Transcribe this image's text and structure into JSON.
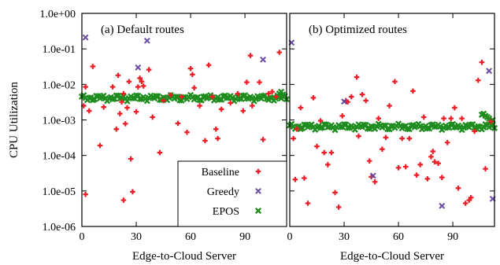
{
  "chart_data": {
    "type": "scatter",
    "xlabel": "Edge-to-Cloud Server",
    "ylabel": "CPU Utilization",
    "yscale": "log",
    "ylim": [
      1e-06,
      1
    ],
    "y_ticks": [
      "1.0e-06",
      "1.0e-05",
      "1.0e-04",
      "1.0e-03",
      "1.0e-02",
      "1.0e-01",
      "1.0e+00"
    ],
    "legend": {
      "position": "bottom-center, inside left panel",
      "entries": [
        "Baseline",
        "Greedy",
        "EPOS"
      ]
    },
    "series_colors": {
      "Baseline": "#ee1c25",
      "Greedy": "#6a4ba3",
      "EPOS": "#1e8c1e"
    },
    "panels": [
      {
        "title": "(a) Default routes",
        "xlim": [
          0,
          113
        ],
        "x_ticks": [
          "0",
          "30",
          "60",
          "90"
        ],
        "baseline": [
          [
            1,
            0.0025
          ],
          [
            2,
            0.0085
          ],
          [
            2,
            8e-06
          ],
          [
            4,
            0.0018
          ],
          [
            6,
            0.032
          ],
          [
            10,
            0.00019
          ],
          [
            12,
            0.0023
          ],
          [
            17,
            0.0085
          ],
          [
            19,
            0.00055
          ],
          [
            20,
            0.018
          ],
          [
            21,
            0.0015
          ],
          [
            22,
            0.0032
          ],
          [
            23,
            0.0055
          ],
          [
            23,
            5.5e-06
          ],
          [
            24,
            0.00078
          ],
          [
            25,
            0.0022
          ],
          [
            26,
            0.012
          ],
          [
            27,
            8e-05
          ],
          [
            28,
            9.5e-06
          ],
          [
            30,
            0.0017
          ],
          [
            31,
            0.0085
          ],
          [
            32,
            0.015
          ],
          [
            33,
            0.012
          ],
          [
            34,
            0.009
          ],
          [
            37,
            0.026
          ],
          [
            39,
            0.0012
          ],
          [
            43,
            0.00012
          ],
          [
            45,
            0.0035
          ],
          [
            49,
            0.005
          ],
          [
            53,
            0.0008
          ],
          [
            55,
            0.0045
          ],
          [
            58,
            0.00045
          ],
          [
            60,
            0.028
          ],
          [
            61,
            0.019
          ],
          [
            62,
            0.008
          ],
          [
            65,
            0.0025
          ],
          [
            68,
            0.00026
          ],
          [
            70,
            0.035
          ],
          [
            72,
            0.0045
          ],
          [
            74,
            0.00055
          ],
          [
            75,
            0.0003
          ],
          [
            77,
            0.002
          ],
          [
            82,
            0.003
          ],
          [
            86,
            0.0055
          ],
          [
            89,
            0.0018
          ],
          [
            91,
            0.0115
          ],
          [
            93,
            0.065
          ],
          [
            94,
            0.0025
          ],
          [
            98,
            0.0115
          ],
          [
            100,
            0.00028
          ],
          [
            103,
            0.0055
          ],
          [
            105,
            0.0062
          ],
          [
            107,
            0.0045
          ],
          [
            109,
            0.08
          ]
        ],
        "greedy": [
          [
            2,
            0.21
          ],
          [
            31,
            0.03
          ],
          [
            36,
            0.17
          ],
          [
            100,
            0.05
          ]
        ],
        "epos_level": 0.0042,
        "epos_tail": [
          [
            108,
            0.0045
          ],
          [
            109,
            0.0055
          ],
          [
            110,
            0.0062
          ],
          [
            111,
            0.0052
          ]
        ]
      },
      {
        "title": "(b) Optimized routes",
        "xlim": [
          0,
          113
        ],
        "x_ticks": [
          "0",
          "30",
          "60",
          "90"
        ],
        "baseline": [
          [
            2,
            0.0003
          ],
          [
            3,
            2.1e-05
          ],
          [
            4,
            0.00055
          ],
          [
            6,
            0.0022
          ],
          [
            8,
            2.3e-05
          ],
          [
            10,
            4.5e-06
          ],
          [
            13,
            0.0042
          ],
          [
            15,
            0.00018
          ],
          [
            17,
            0.00095
          ],
          [
            19,
            0.00012
          ],
          [
            21,
            5.5e-05
          ],
          [
            23,
            0.00012
          ],
          [
            25,
            9e-06
          ],
          [
            27,
            3.5e-06
          ],
          [
            29,
            0.0013
          ],
          [
            31,
            0.0035
          ],
          [
            32,
            0.0032
          ],
          [
            34,
            0.0045
          ],
          [
            37,
            0.016
          ],
          [
            38,
            0.00035
          ],
          [
            40,
            0.0052
          ],
          [
            42,
            0.0035
          ],
          [
            44,
            7e-05
          ],
          [
            45,
            2.5e-05
          ],
          [
            47,
            1.8e-05
          ],
          [
            49,
            0.0011
          ],
          [
            51,
            0.00015
          ],
          [
            53,
            0.00032
          ],
          [
            55,
            0.0025
          ],
          [
            58,
            0.012
          ],
          [
            60,
            4.5e-05
          ],
          [
            62,
            0.0003
          ],
          [
            64,
            4.8e-05
          ],
          [
            66,
            0.0003
          ],
          [
            68,
            0.0065
          ],
          [
            70,
            2.8e-05
          ],
          [
            72,
            5.5e-05
          ],
          [
            74,
            0.0012
          ],
          [
            76,
            2.2e-05
          ],
          [
            78,
            9.2e-05
          ],
          [
            79,
            0.00013
          ],
          [
            80,
            6.6e-05
          ],
          [
            82,
            6e-05
          ],
          [
            84,
            2.4e-05
          ],
          [
            85,
            0.0011
          ],
          [
            87,
            0.00023
          ],
          [
            89,
            0.0011
          ],
          [
            91,
            0.0022
          ],
          [
            93,
            1.2e-05
          ],
          [
            95,
            0.0011
          ],
          [
            97,
            4.5e-06
          ],
          [
            99,
            5.5e-06
          ],
          [
            100,
            6.5e-06
          ],
          [
            102,
            0.00048
          ],
          [
            104,
            0.013
          ],
          [
            106,
            0.042
          ],
          [
            108,
            4.2e-05
          ],
          [
            111,
            0.0009
          ]
        ],
        "greedy": [
          [
            1,
            0.15
          ],
          [
            30,
            0.0033
          ],
          [
            46,
            2.7e-05
          ],
          [
            84,
            3.8e-06
          ],
          [
            110,
            0.024
          ],
          [
            112,
            6e-06
          ]
        ],
        "epos_level": 0.00065,
        "epos_tail": [
          [
            106,
            0.0014
          ],
          [
            107,
            0.0015
          ],
          [
            108,
            0.0013
          ],
          [
            109,
            0.0012
          ],
          [
            110,
            0.0011
          ],
          [
            111,
            0.0009
          ],
          [
            112,
            0.001
          ]
        ]
      }
    ]
  }
}
